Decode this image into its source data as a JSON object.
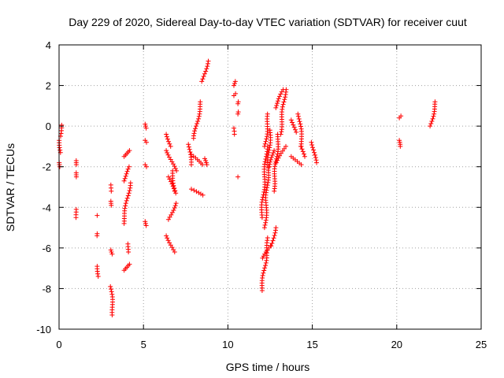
{
  "chart_data": {
    "type": "scatter",
    "title": "Day 229 of 2020, Sidereal Day-to-day VTEC variation (SDTVAR) for receiver cuut",
    "xlabel": "GPS time / hours",
    "ylabel": "SDTVAR / TECUs",
    "xlim": [
      0,
      25
    ],
    "ylim": [
      -10,
      4
    ],
    "xticks": [
      0,
      5,
      10,
      15,
      20,
      25
    ],
    "yticks": [
      -10,
      -8,
      -6,
      -4,
      -2,
      0,
      2,
      4
    ],
    "grid": true,
    "legend": "none",
    "marker": "plus",
    "color": "#ff0000",
    "segments": [
      [
        0.1,
        0.1,
        0.05,
        -0.5
      ],
      [
        0.05,
        0.1,
        -0.7,
        -1.3
      ],
      [
        0.05,
        0.1,
        -1.8,
        -2.0
      ],
      [
        1.0,
        1.05,
        -1.7,
        -1.9
      ],
      [
        1.0,
        1.05,
        -2.3,
        -2.5
      ],
      [
        1.0,
        1.05,
        -4.1,
        -4.5
      ],
      [
        2.3,
        2.3,
        -4.4,
        -4.4
      ],
      [
        2.3,
        2.3,
        -5.3,
        -5.4
      ],
      [
        2.3,
        2.35,
        -6.9,
        -7.4
      ],
      [
        3.1,
        3.15,
        -2.9,
        -3.2
      ],
      [
        3.1,
        3.15,
        -3.7,
        -3.9
      ],
      [
        3.1,
        3.2,
        -6.1,
        -6.3
      ],
      [
        3.05,
        3.2,
        -7.9,
        -9.3
      ],
      [
        3.8,
        4.2,
        -1.5,
        -1.2
      ],
      [
        3.8,
        4.2,
        -2.7,
        -2.0
      ],
      [
        3.8,
        4.2,
        -4.8,
        -2.8
      ],
      [
        3.8,
        4.2,
        -7.1,
        -6.8
      ],
      [
        4.05,
        4.15,
        -5.8,
        -6.2
      ],
      [
        5.1,
        5.2,
        0.1,
        -0.1
      ],
      [
        5.1,
        5.2,
        -0.7,
        -0.8
      ],
      [
        5.1,
        5.2,
        -1.9,
        -2.0
      ],
      [
        5.1,
        5.2,
        -4.7,
        -4.9
      ],
      [
        6.4,
        6.6,
        -0.4,
        -1.0
      ],
      [
        6.4,
        6.9,
        -1.2,
        -2.2
      ],
      [
        6.5,
        6.8,
        -2.5,
        -3.2
      ],
      [
        6.5,
        6.9,
        -4.6,
        -3.8
      ],
      [
        6.4,
        6.8,
        -5.4,
        -6.2
      ],
      [
        6.7,
        6.9,
        -2.2,
        -3.3
      ],
      [
        7.7,
        7.8,
        -0.9,
        -1.9
      ],
      [
        7.8,
        8.5,
        -3.1,
        -3.4
      ],
      [
        7.8,
        8.5,
        -1.4,
        -1.9
      ],
      [
        8.0,
        8.4,
        -0.6,
        1.2
      ],
      [
        8.5,
        8.8,
        2.2,
        3.2
      ],
      [
        8.6,
        8.7,
        -1.6,
        -1.9
      ],
      [
        10.3,
        10.4,
        2.0,
        2.2
      ],
      [
        10.3,
        10.4,
        1.5,
        1.6
      ],
      [
        10.3,
        10.35,
        -0.1,
        -0.4
      ],
      [
        10.6,
        10.6,
        1.1,
        1.2
      ],
      [
        10.6,
        10.6,
        0.6,
        0.7
      ],
      [
        10.6,
        10.6,
        -2.5,
        -2.5
      ],
      [
        12.0,
        12.4,
        -8.1,
        -5.5
      ],
      [
        12.1,
        12.5,
        -6.5,
        -5.9
      ],
      [
        12.2,
        12.5,
        -5.0,
        -0.2
      ],
      [
        12.0,
        12.3,
        -4.5,
        -1.0
      ],
      [
        12.2,
        12.4,
        -1.0,
        0.6
      ],
      [
        12.5,
        12.7,
        -2.0,
        -1.2
      ],
      [
        12.6,
        12.8,
        -5.9,
        -5.0
      ],
      [
        12.7,
        13.0,
        -3.2,
        -0.4
      ],
      [
        12.8,
        13.3,
        0.9,
        1.8
      ],
      [
        13.1,
        13.4,
        -0.4,
        1.8
      ],
      [
        12.9,
        13.4,
        -1.8,
        -1.0
      ],
      [
        13.8,
        14.0,
        0.3,
        -0.3
      ],
      [
        13.8,
        14.3,
        -1.5,
        -1.9
      ],
      [
        14.2,
        14.4,
        0.6,
        -1.0
      ],
      [
        14.3,
        14.5,
        -1.0,
        -1.5
      ],
      [
        15.0,
        15.2,
        -0.8,
        -1.8
      ],
      [
        20.1,
        20.2,
        0.4,
        0.5
      ],
      [
        20.1,
        20.2,
        -0.7,
        -1.0
      ],
      [
        22.0,
        22.3,
        0.0,
        1.2
      ]
    ]
  }
}
